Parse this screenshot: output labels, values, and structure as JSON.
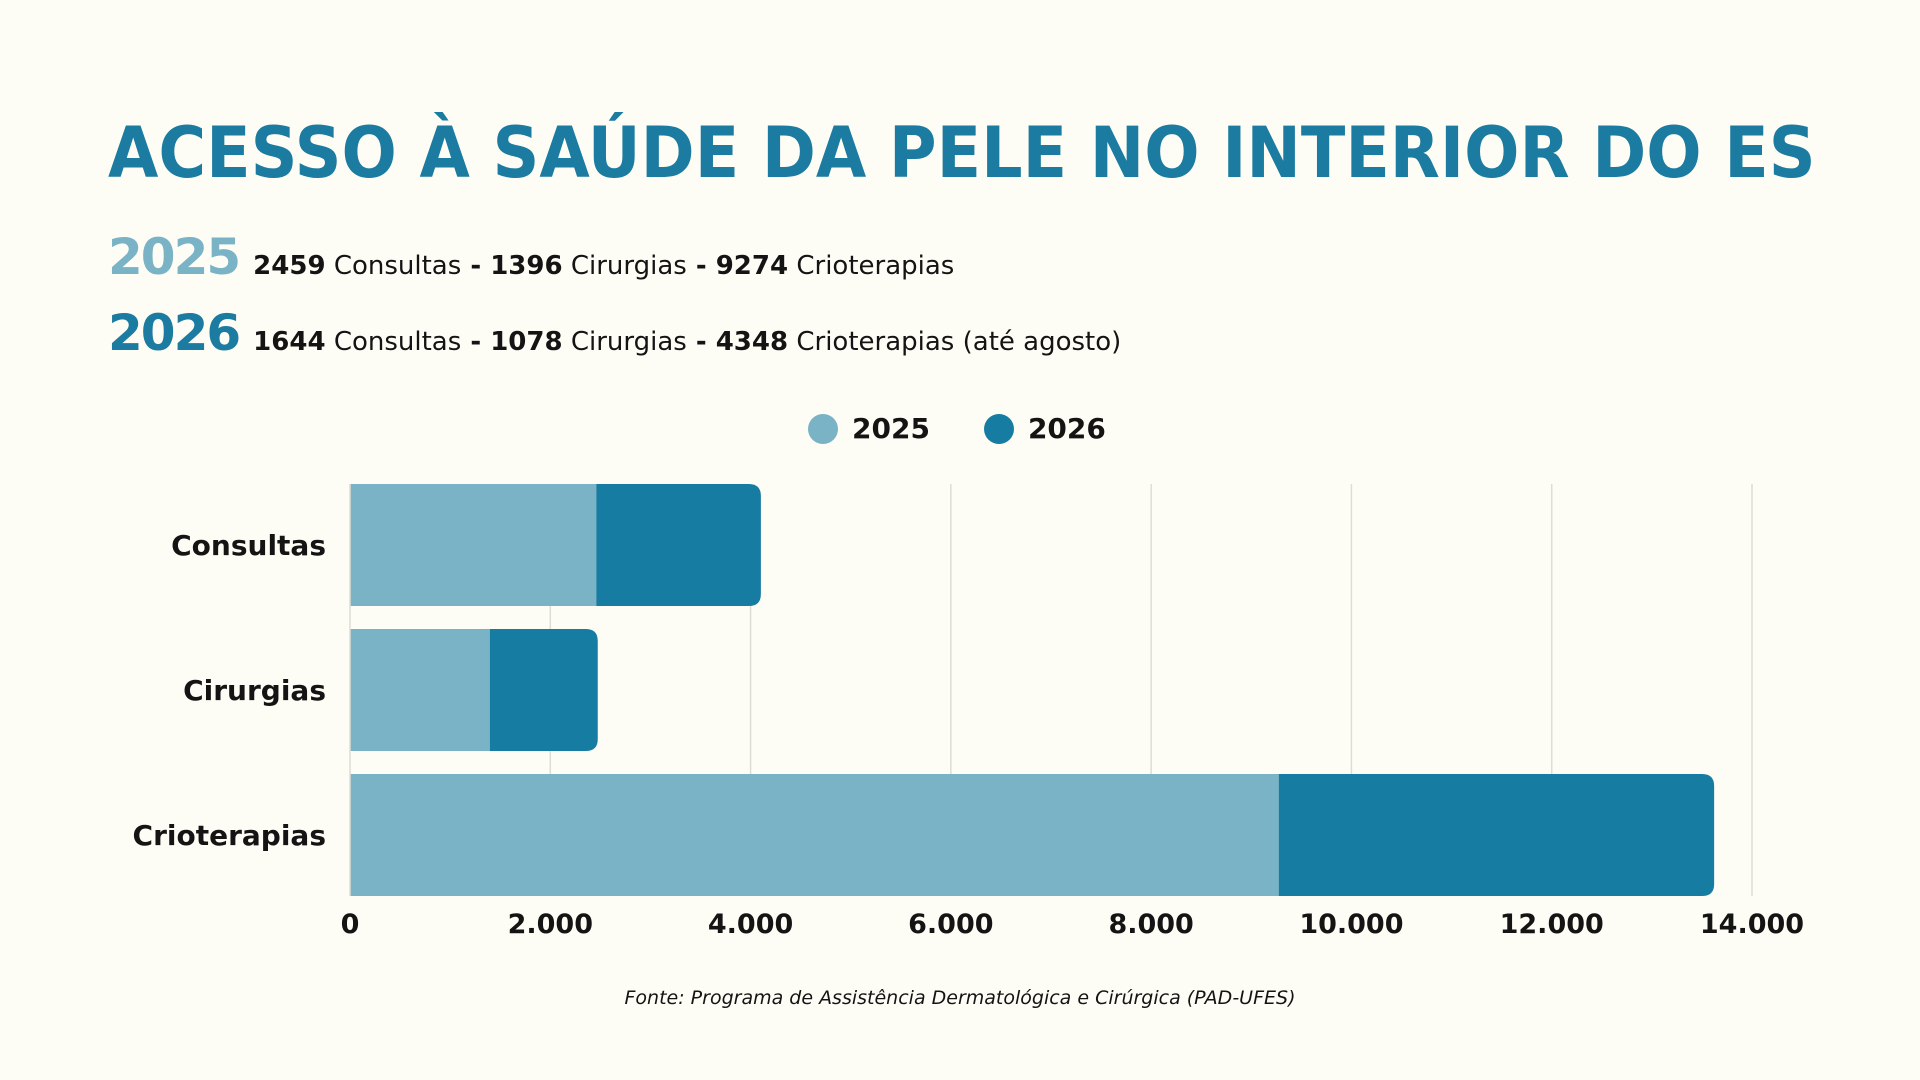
{
  "title": "ACESSO À SAÚDE DA PELE NO INTERIOR DO ES",
  "summary": [
    {
      "year": "2025",
      "consultas": "2459",
      "consultas_label": "Consultas",
      "sep1": " - ",
      "cirurgias": "1396",
      "cirurgias_label": "Cirurgias",
      "sep2": " - ",
      "crioterapias": "9274",
      "crioterapias_label": "Crioterapias"
    },
    {
      "year": "2026",
      "consultas": "1644",
      "consultas_label": "Consultas",
      "sep1": " - ",
      "cirurgias": "1078",
      "cirurgias_label": "Cirurgias",
      "sep2": " - ",
      "crioterapias": "4348",
      "crioterapias_label": "Crioterapias (até agosto)"
    }
  ],
  "legend": [
    {
      "label": "2025",
      "color": "#7AB2C6"
    },
    {
      "label": "2026",
      "color": "#177CA2"
    }
  ],
  "source": "Fonte: Programa de Assistência Dermatológica e Cirúrgica (PAD-UFES)",
  "chart_data": {
    "type": "bar",
    "orientation": "horizontal",
    "stacked": true,
    "categories": [
      "Consultas",
      "Cirurgias",
      "Crioterapias"
    ],
    "series": [
      {
        "name": "2025",
        "values": [
          2459,
          1396,
          9274
        ],
        "color": "#7AB2C6"
      },
      {
        "name": "2026",
        "values": [
          1644,
          1078,
          4348
        ],
        "color": "#177CA2"
      }
    ],
    "xlim": [
      0,
      14000
    ],
    "xticks": [
      0,
      2000,
      4000,
      6000,
      8000,
      10000,
      12000,
      14000
    ],
    "xtick_labels": [
      "0",
      "2.000",
      "4.000",
      "6.000",
      "8.000",
      "10.000",
      "12.000",
      "14.000"
    ],
    "grid": "vertical",
    "legend_position": "top-center"
  }
}
